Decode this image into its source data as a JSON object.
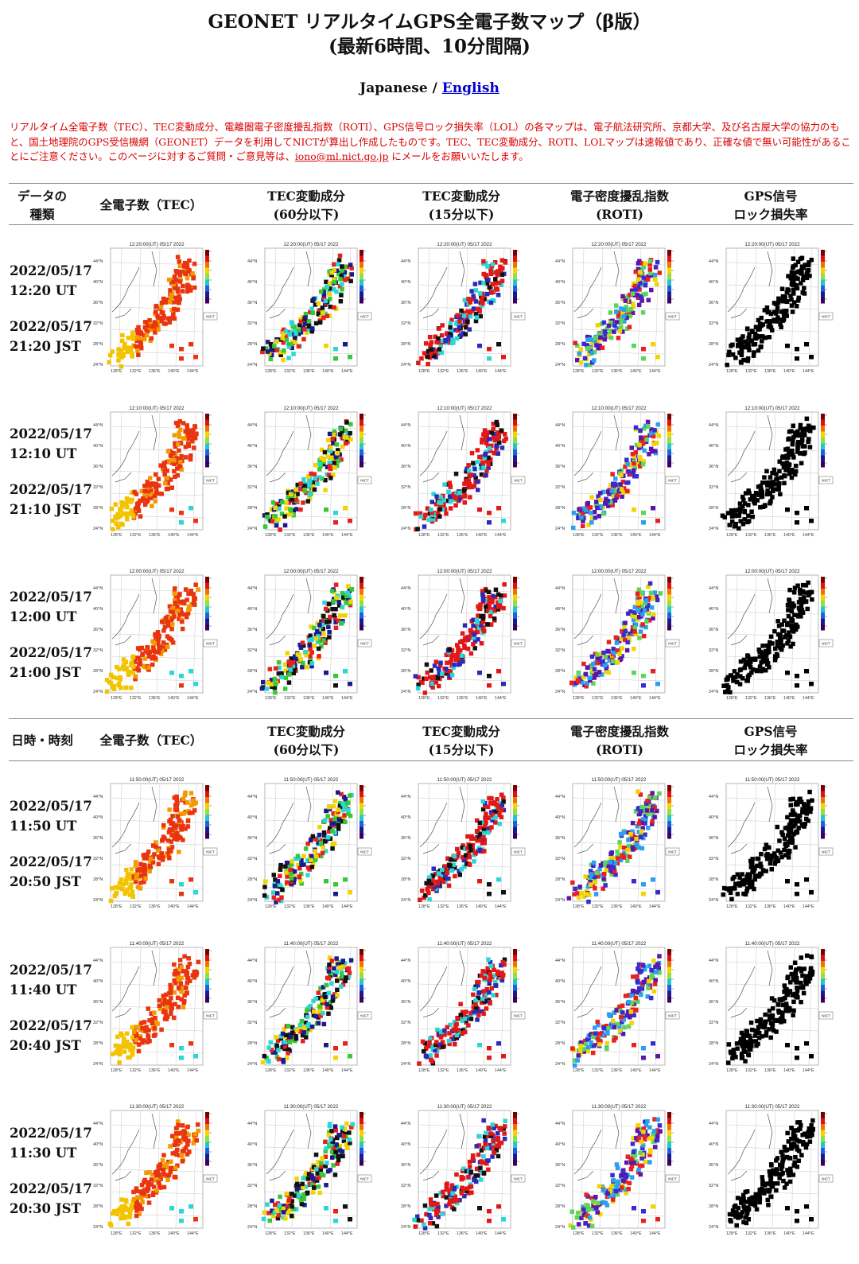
{
  "header": {
    "title_line1": "GEONET リアルタイムGPS全電子数マップ（β版）",
    "title_line2": "(最新6時間、10分間隔)",
    "lang_japanese": "Japanese",
    "lang_sep": " / ",
    "lang_english": "English"
  },
  "notice": {
    "text_before": "リアルタイム全電子数（TEC）、TEC変動成分、電離圏電子密度擾乱指数（ROTI）、GPS信号ロック損失率（LOL）の各マップは、電子航法研究所、京都大学、及び名古屋大学の協力のもと、国土地理院のGPS受信機網（GEONET）データを利用してNICTが算出し作成したものです。TEC、TEC変動成分、ROTI、LOLマップは速報値であり、正確な値で無い可能性があることにご注意ください。このページに対するご質問・ご意見等は、",
    "email": "iono@ml.nict.go.jp",
    "text_after": " にメールをお願いいたします。"
  },
  "table_header_1": {
    "col0_l1": "データの",
    "col0_l2": "種類",
    "col1": "全電子数（TEC）",
    "col2_l1": "TEC変動成分",
    "col2_l2": "(60分以下)",
    "col3_l1": "TEC変動成分",
    "col3_l2": "(15分以下)",
    "col4_l1": "電子密度擾乱指数",
    "col4_l2": "(ROTI)",
    "col5_l1": "GPS信号",
    "col5_l2": "ロック損失率"
  },
  "table_header_2": {
    "col0": "日時・時刻",
    "col1": "全電子数（TEC）",
    "col2_l1": "TEC変動成分",
    "col2_l2": "(60分以下)",
    "col3_l1": "TEC変動成分",
    "col3_l2": "(15分以下)",
    "col4_l1": "電子密度擾乱指数",
    "col4_l2": "(ROTI)",
    "col5_l1": "GPS信号",
    "col5_l2": "ロック損失率"
  },
  "rows": [
    {
      "ut_date": "2022/05/17",
      "ut_time": "12:20 UT",
      "jst_date": "2022/05/17",
      "jst_time": "21:20 JST",
      "map_title": "12:20:00(UT) 05/17 2022"
    },
    {
      "ut_date": "2022/05/17",
      "ut_time": "12:10 UT",
      "jst_date": "2022/05/17",
      "jst_time": "21:10 JST",
      "map_title": "12:10:00(UT) 05/17 2022"
    },
    {
      "ut_date": "2022/05/17",
      "ut_time": "12:00 UT",
      "jst_date": "2022/05/17",
      "jst_time": "21:00 JST",
      "map_title": "12:00:00(UT) 05/17 2022"
    },
    {
      "ut_date": "2022/05/17",
      "ut_time": "11:50 UT",
      "jst_date": "2022/05/17",
      "jst_time": "20:50 JST",
      "map_title": "11:50:00(UT) 05/17 2022"
    },
    {
      "ut_date": "2022/05/17",
      "ut_time": "11:40 UT",
      "jst_date": "2022/05/17",
      "jst_time": "20:40 JST",
      "map_title": "11:40:00(UT) 05/17 2022"
    },
    {
      "ut_date": "2022/05/17",
      "ut_time": "11:30 UT",
      "jst_date": "2022/05/17",
      "jst_time": "20:30 JST",
      "map_title": "11:30:00(UT) 05/17 2022"
    }
  ],
  "map_axes": {
    "lat_labels": [
      "44°N",
      "40°N",
      "36°N",
      "32°N",
      "28°N",
      "24°N"
    ],
    "lon_labels": [
      "128°E",
      "132°E",
      "136°E",
      "140°E",
      "144°E"
    ],
    "logo_text": "NICT"
  },
  "map_types": [
    {
      "key": "tec",
      "name": "TEC",
      "colors": [
        "#f5d000",
        "#f29a00",
        "#e8340f",
        "#e02a10",
        "#f07000"
      ]
    },
    {
      "key": "dtec60",
      "name": "TEC変動成分(60分以下)",
      "colors": [
        "#e82020",
        "#37c837",
        "#2bd6d6",
        "#f2d400",
        "#1a1a8c",
        "#111111"
      ]
    },
    {
      "key": "dtec15",
      "name": "TEC変動成分(15分以下)",
      "colors": [
        "#e01818",
        "#111111",
        "#e01818",
        "#2a2ab8",
        "#2bd6d6",
        "#e01818"
      ]
    },
    {
      "key": "roti",
      "name": "ROTI",
      "colors": [
        "#3a2ad0",
        "#2aa0f0",
        "#5bd65b",
        "#e82020",
        "#5a16a8",
        "#f2d400"
      ]
    },
    {
      "key": "lol",
      "name": "LOL",
      "colors": [
        "#000000"
      ]
    }
  ]
}
